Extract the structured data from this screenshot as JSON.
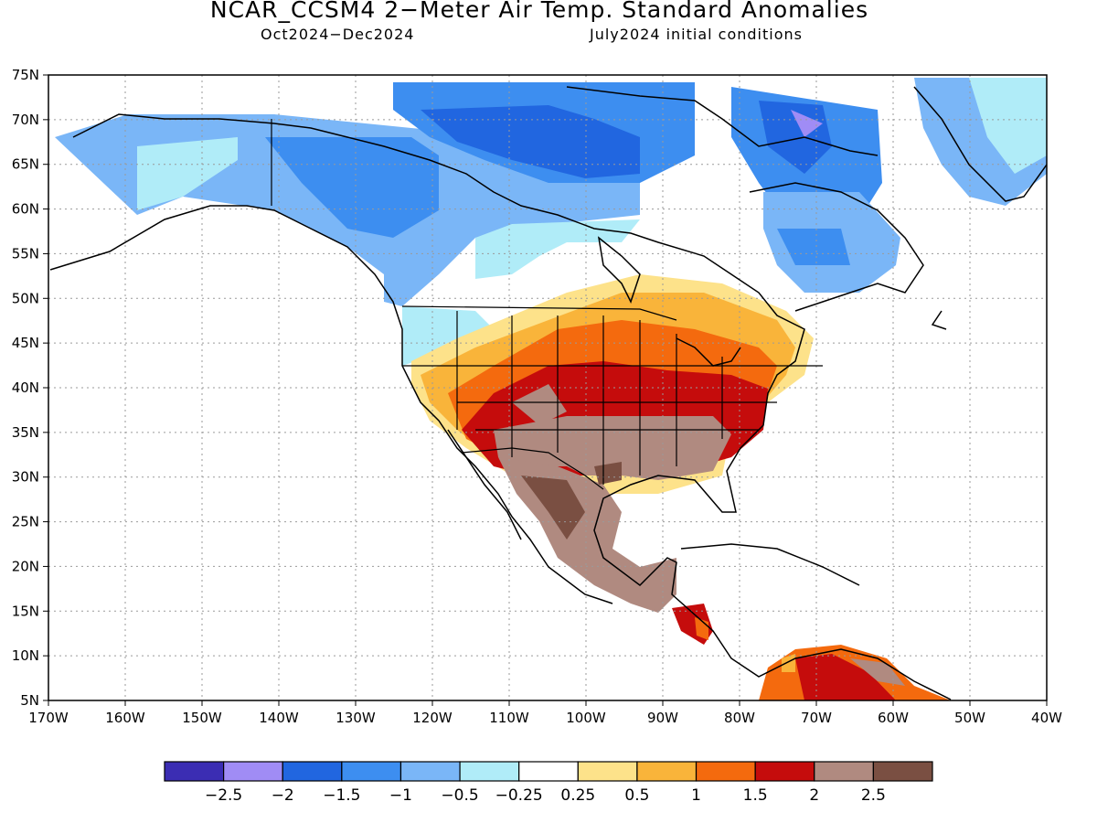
{
  "title": "NCAR_CCSM4 2−Meter Air Temp. Standard Anomalies",
  "subtitle_left": "Oct2024−Dec2024",
  "subtitle_right": "July2024 initial conditions",
  "lat_ticks": [
    "75N",
    "70N",
    "65N",
    "60N",
    "55N",
    "50N",
    "45N",
    "40N",
    "35N",
    "30N",
    "25N",
    "20N",
    "15N",
    "10N",
    "5N"
  ],
  "lon_ticks": [
    "170W",
    "160W",
    "150W",
    "140W",
    "130W",
    "120W",
    "110W",
    "100W",
    "90W",
    "80W",
    "70W",
    "60W",
    "50W",
    "40W"
  ],
  "colorbar": {
    "colors": [
      "#3b2db3",
      "#a08cf5",
      "#2166e0",
      "#3d8ef0",
      "#7ab6f7",
      "#b0ecf8",
      "#ffffff",
      "#fde28a",
      "#f9b43a",
      "#f46a0e",
      "#c50c0c",
      "#b08a80",
      "#7a4f42"
    ],
    "labels": [
      "−2.5",
      "−2",
      "−1.5",
      "−1",
      "−0.5",
      "−0.25",
      "0.25",
      "0.5",
      "1",
      "1.5",
      "2",
      "2.5"
    ]
  }
}
